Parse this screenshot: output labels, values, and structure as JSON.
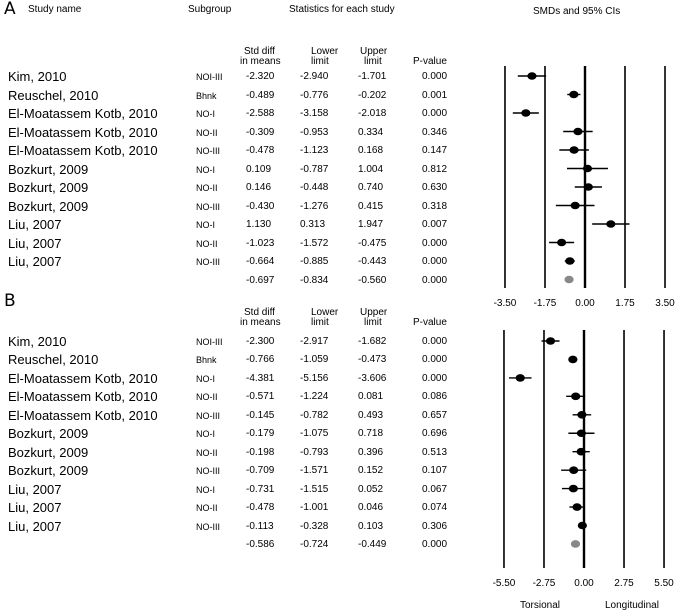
{
  "headers": {
    "study_name": "Study name",
    "subgroup": "Subgroup",
    "stats": "Statistics for each study",
    "smd_ci": "SMDs and 95% CIs",
    "std_diff": [
      "Std diff",
      "in means"
    ],
    "lower": [
      "Lower",
      "limit"
    ],
    "upper": [
      "Upper",
      "limit"
    ],
    "pvalue": "P-value"
  },
  "chart_data": [
    {
      "type": "forest",
      "panel": "A",
      "xlim": [
        -3.5,
        3.5
      ],
      "ticks": [
        "-3.50",
        "-1.75",
        "0.00",
        "1.75",
        "3.50"
      ],
      "tick_values": [
        -3.5,
        -1.75,
        0,
        1.75,
        3.5
      ],
      "rows": [
        {
          "study": "Kim, 2010",
          "subgroup": "NOI-III",
          "smd": "-2.320",
          "lower": "-2.940",
          "upper": "-1.701",
          "p": "0.000"
        },
        {
          "study": "Reuschel, 2010",
          "subgroup": "Bhnk",
          "smd": "-0.489",
          "lower": "-0.776",
          "upper": "-0.202",
          "p": "0.001"
        },
        {
          "study": "El-Moatassem Kotb, 2010",
          "subgroup": "NO-I",
          "smd": "-2.588",
          "lower": "-3.158",
          "upper": "-2.018",
          "p": "0.000"
        },
        {
          "study": "El-Moatassem Kotb, 2010",
          "subgroup": "NO-II",
          "smd": "-0.309",
          "lower": "-0.953",
          "upper": "0.334",
          "p": "0.346"
        },
        {
          "study": "El-Moatassem Kotb, 2010",
          "subgroup": "NO-III",
          "smd": "-0.478",
          "lower": "-1.123",
          "upper": "0.168",
          "p": "0.147"
        },
        {
          "study": "Bozkurt, 2009",
          "subgroup": "NO-I",
          "smd": "0.109",
          "lower": "-0.787",
          "upper": "1.004",
          "p": "0.812"
        },
        {
          "study": "Bozkurt, 2009",
          "subgroup": "NO-II",
          "smd": "0.146",
          "lower": "-0.448",
          "upper": "0.740",
          "p": "0.630"
        },
        {
          "study": "Bozkurt, 2009",
          "subgroup": "NO-III",
          "smd": "-0.430",
          "lower": "-1.276",
          "upper": "0.415",
          "p": "0.318"
        },
        {
          "study": "Liu, 2007",
          "subgroup": "NO-I",
          "smd": "1.130",
          "lower": "0.313",
          "upper": "1.947",
          "p": "0.007"
        },
        {
          "study": "Liu, 2007",
          "subgroup": "NO-II",
          "smd": "-1.023",
          "lower": "-1.572",
          "upper": "-0.475",
          "p": "0.000"
        },
        {
          "study": "Liu, 2007",
          "subgroup": "NO-III",
          "smd": "-0.664",
          "lower": "-0.885",
          "upper": "-0.443",
          "p": "0.000"
        }
      ],
      "summary": {
        "smd": "-0.697",
        "lower": "-0.834",
        "upper": "-0.560",
        "p": "0.000"
      }
    },
    {
      "type": "forest",
      "panel": "B",
      "xlim": [
        -5.5,
        5.5
      ],
      "ticks": [
        "-5.50",
        "-2.75",
        "0.00",
        "2.75",
        "5.50"
      ],
      "tick_values": [
        -5.5,
        -2.75,
        0,
        2.75,
        5.5
      ],
      "left_label": "Torsional",
      "right_label": "Longitudinal",
      "rows": [
        {
          "study": "Kim, 2010",
          "subgroup": "NOI-III",
          "smd": "-2.300",
          "lower": "-2.917",
          "upper": "-1.682",
          "p": "0.000"
        },
        {
          "study": "Reuschel, 2010",
          "subgroup": "Bhnk",
          "smd": "-0.766",
          "lower": "-1.059",
          "upper": "-0.473",
          "p": "0.000"
        },
        {
          "study": "El-Moatassem Kotb, 2010",
          "subgroup": "NO-I",
          "smd": "-4.381",
          "lower": "-5.156",
          "upper": "-3.606",
          "p": "0.000"
        },
        {
          "study": "El-Moatassem Kotb, 2010",
          "subgroup": "NO-II",
          "smd": "-0.571",
          "lower": "-1.224",
          "upper": "0.081",
          "p": "0.086"
        },
        {
          "study": "El-Moatassem Kotb, 2010",
          "subgroup": "NO-III",
          "smd": "-0.145",
          "lower": "-0.782",
          "upper": "0.493",
          "p": "0.657"
        },
        {
          "study": "Bozkurt, 2009",
          "subgroup": "NO-I",
          "smd": "-0.179",
          "lower": "-1.075",
          "upper": "0.718",
          "p": "0.696"
        },
        {
          "study": "Bozkurt, 2009",
          "subgroup": "NO-II",
          "smd": "-0.198",
          "lower": "-0.793",
          "upper": "0.396",
          "p": "0.513"
        },
        {
          "study": "Bozkurt, 2009",
          "subgroup": "NO-III",
          "smd": "-0.709",
          "lower": "-1.571",
          "upper": "0.152",
          "p": "0.107"
        },
        {
          "study": "Liu, 2007",
          "subgroup": "NO-I",
          "smd": "-0.731",
          "lower": "-1.515",
          "upper": "0.052",
          "p": "0.067"
        },
        {
          "study": "Liu, 2007",
          "subgroup": "NO-II",
          "smd": "-0.478",
          "lower": "-1.001",
          "upper": "0.046",
          "p": "0.074"
        },
        {
          "study": "Liu, 2007",
          "subgroup": "NO-III",
          "smd": "-0.113",
          "lower": "-0.328",
          "upper": "0.103",
          "p": "0.306"
        }
      ],
      "summary": {
        "smd": "-0.586",
        "lower": "-0.724",
        "upper": "-0.449",
        "p": "0.000"
      }
    }
  ],
  "colors": {
    "marker": "#000000",
    "summary_marker": "#888888",
    "line": "#000000"
  }
}
